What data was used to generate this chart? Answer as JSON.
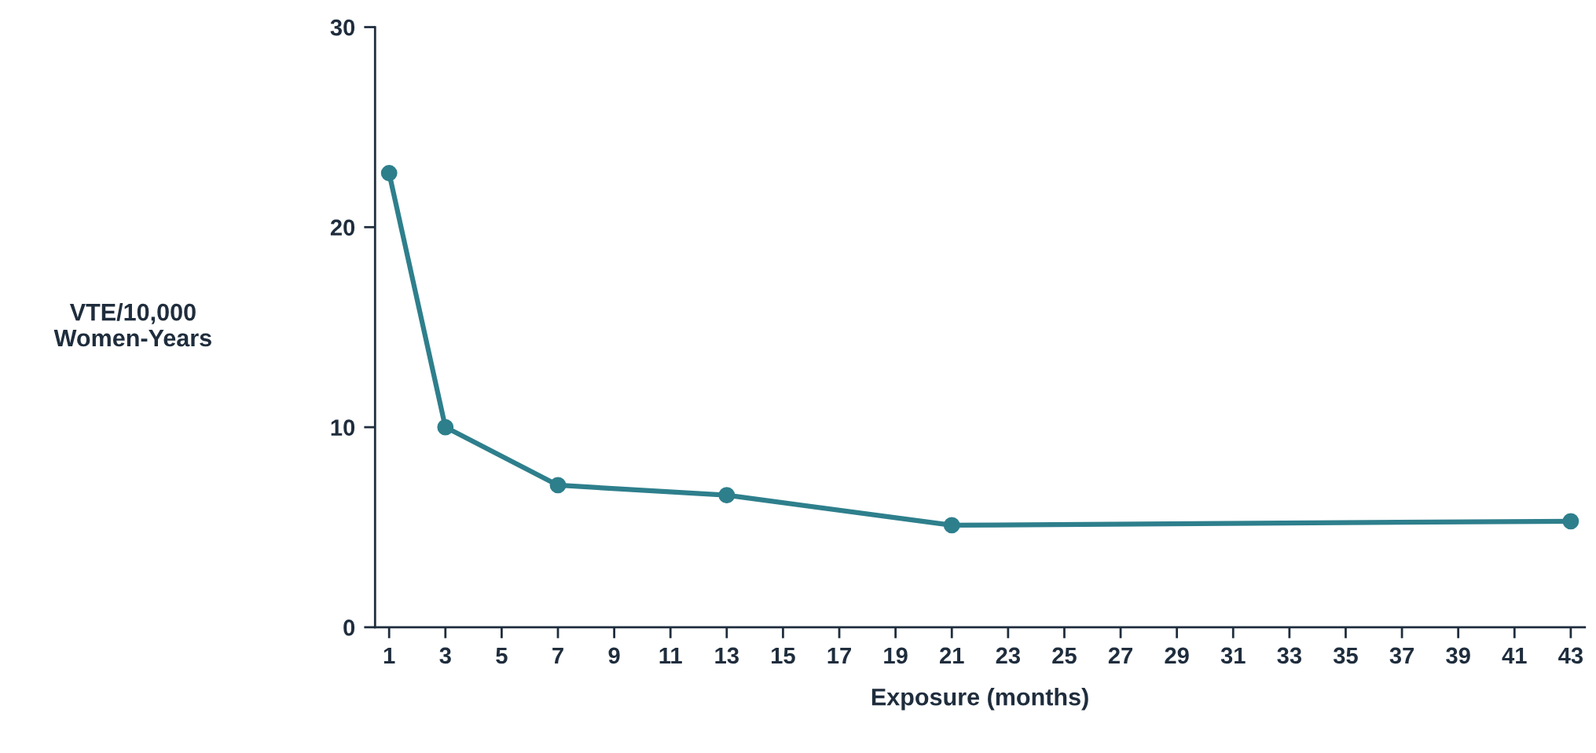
{
  "chart_data": {
    "type": "line",
    "xlabel": "Exposure (months)",
    "ylabel": "VTE/10,000\nWomen-Years",
    "x": [
      1,
      3,
      7,
      13,
      21,
      43
    ],
    "series": [
      {
        "color": "#2e7f8c",
        "values": [
          22.7,
          10.0,
          7.1,
          6.6,
          5.1,
          5.3
        ]
      }
    ],
    "xlim": [
      0.5,
      43.5
    ],
    "xticks": [
      1,
      3,
      5,
      7,
      9,
      11,
      13,
      15,
      17,
      19,
      21,
      23,
      25,
      27,
      29,
      31,
      33,
      35,
      37,
      39,
      41,
      43
    ],
    "ylim": [
      0,
      30
    ],
    "yticks": [
      0,
      10,
      20,
      30
    ],
    "marker": "circle",
    "line_style": "solid",
    "grid": false,
    "legend": false
  }
}
